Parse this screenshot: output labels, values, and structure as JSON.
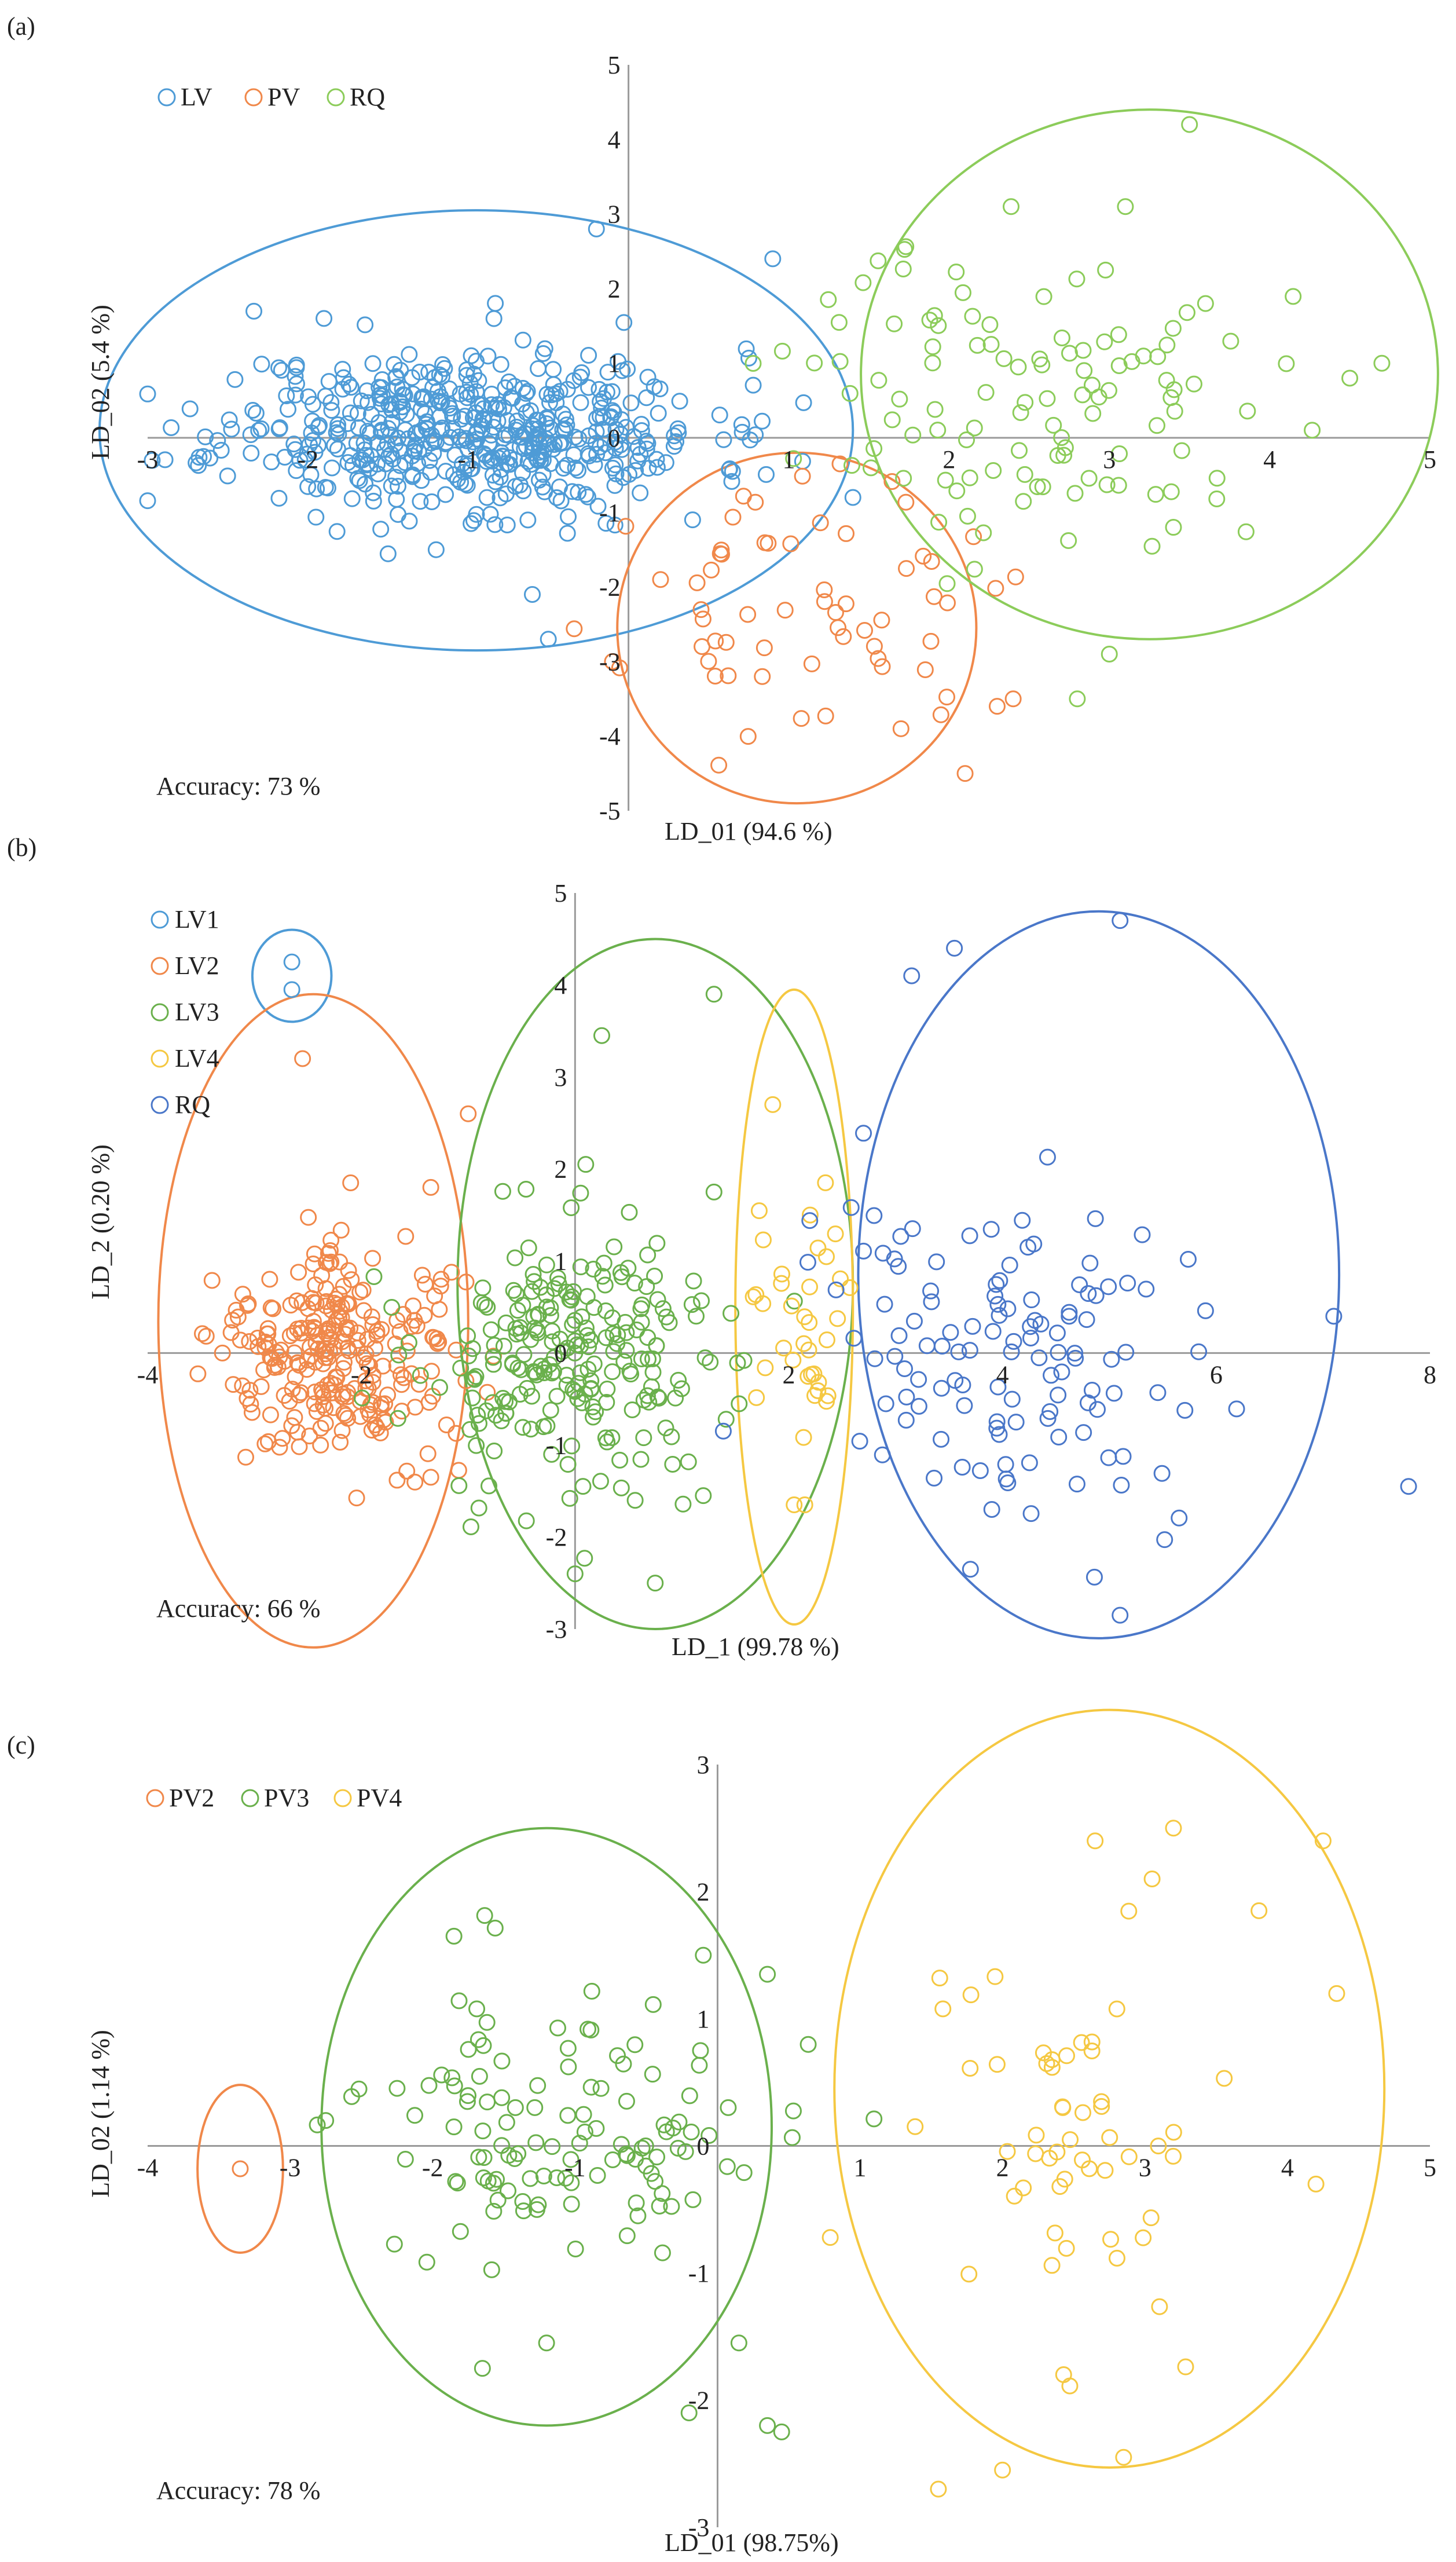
{
  "figure": {
    "panels": [
      "(a)",
      "(b)",
      "(c)"
    ]
  },
  "colors": {
    "LV": "#4e9bd6",
    "PV": "#f0884a",
    "RQ": "#8ccc5a",
    "LV1": "#4e9bd6",
    "LV2": "#f0884a",
    "LV3": "#6ab04c",
    "LV4": "#f5c842",
    "RQ_b": "#4a77c9",
    "PV2": "#f0884a",
    "PV3": "#6ab04c",
    "PV4": "#f5c842",
    "axis": "#9a9a9a"
  },
  "chart_data": [
    {
      "type": "scatter",
      "panel": "(a)",
      "title": "",
      "xlabel": "LD_01 (94.6 %)",
      "ylabel": "LD_02 (5.4 %)",
      "xlim": [
        -3,
        5
      ],
      "ylim": [
        -5,
        5
      ],
      "xticks": [
        -3,
        -2,
        -1,
        0,
        1,
        2,
        3,
        4,
        5
      ],
      "yticks": [
        -5,
        -4,
        -3,
        -2,
        -1,
        0,
        1,
        2,
        3,
        4,
        5
      ],
      "accuracy": "Accuracy: 73 %",
      "legend": [
        "LV",
        "PV",
        "RQ"
      ],
      "series": [
        {
          "name": "LV",
          "cluster": {
            "center": [
              -1.0,
              0.1
            ],
            "spread": [
              0.75,
              0.55
            ],
            "count": 520,
            "seed": 11
          },
          "extra_points": [
            [
              0.9,
              2.4
            ],
            [
              -0.2,
              2.8
            ],
            [
              -1.9,
              1.6
            ],
            [
              1.4,
              -0.8
            ],
            [
              0.4,
              -1.1
            ],
            [
              -0.6,
              -2.1
            ],
            [
              -0.5,
              -2.7
            ],
            [
              -1.2,
              -1.5
            ]
          ]
        },
        {
          "name": "PV",
          "cluster": {
            "center": [
              1.15,
              -2.35
            ],
            "spread": [
              0.55,
              0.8
            ],
            "count": 60,
            "seed": 23
          },
          "extra_points": [
            [
              2.1,
              -4.5
            ],
            [
              2.3,
              -3.6
            ],
            [
              2.4,
              -3.5
            ],
            [
              1.7,
              -3.9
            ],
            [
              0.2,
              -1.9
            ],
            [
              -0.1,
              -3.0
            ]
          ]
        },
        {
          "name": "RQ",
          "cluster": {
            "center": [
              2.55,
              0.55
            ],
            "spread": [
              0.75,
              1.05
            ],
            "count": 110,
            "seed": 37
          },
          "extra_points": [
            [
              3.5,
              4.2
            ],
            [
              3.1,
              3.1
            ],
            [
              4.7,
              1.0
            ],
            [
              4.5,
              0.8
            ],
            [
              3.0,
              -2.9
            ],
            [
              2.8,
              -3.5
            ],
            [
              3.4,
              -1.2
            ],
            [
              3.6,
              1.8
            ]
          ]
        }
      ],
      "ellipses": [
        {
          "name": "LV",
          "center": [
            -0.95,
            0.1
          ],
          "radii": [
            2.35,
            2.95
          ]
        },
        {
          "name": "PV",
          "center": [
            1.05,
            -2.55
          ],
          "radii": [
            1.12,
            2.35
          ]
        },
        {
          "name": "RQ",
          "center": [
            3.25,
            0.85
          ],
          "radii": [
            1.8,
            3.55
          ]
        }
      ]
    },
    {
      "type": "scatter",
      "panel": "(b)",
      "title": "",
      "xlabel": "LD_1 (99.78 %)",
      "ylabel": "LD_2 (0.20 %)",
      "xlim": [
        -4,
        8
      ],
      "ylim": [
        -3,
        5
      ],
      "xticks": [
        -4,
        -2,
        0,
        2,
        4,
        6,
        8
      ],
      "yticks": [
        -3,
        -2,
        -1,
        0,
        1,
        2,
        3,
        4,
        5
      ],
      "accuracy": "Accuracy: 66 %",
      "legend": [
        "LV1",
        "LV2",
        "LV3",
        "LV4",
        "RQ"
      ],
      "series": [
        {
          "name": "LV1",
          "cluster": {
            "center": [
              -2.65,
              4.1
            ],
            "spread": [
              0.02,
              0.2
            ],
            "count": 0,
            "seed": 5
          },
          "extra_points": [
            [
              -2.65,
              4.25
            ],
            [
              -2.65,
              3.95
            ]
          ]
        },
        {
          "name": "LV2",
          "cluster": {
            "center": [
              -2.2,
              0.0
            ],
            "spread": [
              0.55,
              0.55
            ],
            "count": 260,
            "seed": 41
          },
          "extra_points": [
            [
              -2.55,
              3.2
            ],
            [
              -1.0,
              2.6
            ],
            [
              -2.1,
              1.85
            ],
            [
              -1.35,
              1.8
            ],
            [
              -3.3,
              0.0
            ],
            [
              -1.35,
              -1.35
            ]
          ]
        },
        {
          "name": "LV3",
          "cluster": {
            "center": [
              0.0,
              -0.1
            ],
            "spread": [
              0.75,
              0.75
            ],
            "count": 230,
            "seed": 53
          },
          "extra_points": [
            [
              1.3,
              3.9
            ],
            [
              0.25,
              3.45
            ],
            [
              0.1,
              2.05
            ],
            [
              1.3,
              1.75
            ],
            [
              0.0,
              -2.4
            ],
            [
              0.75,
              -2.5
            ],
            [
              1.2,
              -1.55
            ]
          ]
        },
        {
          "name": "LV4",
          "cluster": {
            "center": [
              2.1,
              0.45
            ],
            "spread": [
              0.28,
              0.75
            ],
            "count": 34,
            "seed": 61
          },
          "extra_points": [
            [
              2.2,
              1.5
            ],
            [
              1.85,
              2.7
            ],
            [
              2.15,
              -1.65
            ],
            [
              2.05,
              -1.65
            ]
          ]
        },
        {
          "name": "RQ",
          "cluster": {
            "center": [
              4.2,
              0.0
            ],
            "spread": [
              0.95,
              0.95
            ],
            "count": 120,
            "seed": 73
          },
          "extra_points": [
            [
              5.1,
              4.7
            ],
            [
              3.55,
              4.4
            ],
            [
              3.15,
              4.1
            ],
            [
              7.8,
              -1.45
            ],
            [
              7.1,
              0.4
            ],
            [
              5.1,
              -2.85
            ],
            [
              3.9,
              -1.7
            ],
            [
              3.7,
              -2.35
            ]
          ]
        }
      ],
      "ellipses": [
        {
          "name": "LV1",
          "center": [
            -2.65,
            4.1
          ],
          "radii": [
            0.37,
            0.5
          ]
        },
        {
          "name": "LV2",
          "center": [
            -2.45,
            0.35
          ],
          "radii": [
            1.45,
            3.55
          ]
        },
        {
          "name": "LV3",
          "center": [
            0.75,
            0.75
          ],
          "radii": [
            1.85,
            3.75
          ]
        },
        {
          "name": "LV4",
          "center": [
            2.05,
            0.5
          ],
          "radii": [
            0.55,
            3.45
          ]
        },
        {
          "name": "RQ",
          "center": [
            4.9,
            0.85
          ],
          "radii": [
            2.25,
            3.95
          ]
        }
      ]
    },
    {
      "type": "scatter",
      "panel": "(c)",
      "title": "",
      "xlabel": "LD_01 (98.75%)",
      "ylabel": "LD_02 (1.14 %)",
      "xlim": [
        -4,
        5
      ],
      "ylim": [
        -3,
        3
      ],
      "xticks": [
        -4,
        -3,
        -2,
        -1,
        0,
        1,
        2,
        3,
        4,
        5
      ],
      "yticks": [
        -3,
        -2,
        -1,
        0,
        1,
        2,
        3
      ],
      "accuracy": "Accuracy: 78 %",
      "legend": [
        "PV2",
        "PV3",
        "PV4"
      ],
      "series": [
        {
          "name": "PV2",
          "cluster": {
            "center": [
              -3.35,
              -0.18
            ],
            "spread": [
              0.01,
              0.01
            ],
            "count": 0,
            "seed": 3
          },
          "extra_points": [
            [
              -3.35,
              -0.18
            ]
          ]
        },
        {
          "name": "PV3",
          "cluster": {
            "center": [
              -0.95,
              0.15
            ],
            "spread": [
              0.75,
              0.55
            ],
            "count": 120,
            "seed": 89
          },
          "extra_points": [
            [
              -1.85,
              1.65
            ],
            [
              -0.1,
              1.5
            ],
            [
              0.35,
              1.35
            ],
            [
              0.35,
              -2.2
            ],
            [
              0.45,
              -2.25
            ],
            [
              -0.2,
              -2.1
            ],
            [
              -2.75,
              0.2
            ],
            [
              -1.65,
              -1.75
            ],
            [
              -1.2,
              -1.55
            ],
            [
              0.15,
              -1.55
            ]
          ]
        },
        {
          "name": "PV4",
          "cluster": {
            "center": [
              2.2,
              0.0
            ],
            "spread": [
              0.7,
              0.9
            ],
            "count": 55,
            "seed": 97
          },
          "extra_points": [
            [
              4.25,
              2.4
            ],
            [
              3.2,
              2.5
            ],
            [
              3.05,
              2.1
            ],
            [
              3.8,
              1.85
            ],
            [
              2.65,
              2.4
            ],
            [
              2.0,
              -2.55
            ],
            [
              1.55,
              -2.7
            ],
            [
              2.85,
              -2.45
            ],
            [
              4.2,
              -0.3
            ]
          ]
        }
      ],
      "ellipses": [
        {
          "name": "PV2",
          "center": [
            -3.35,
            -0.18
          ],
          "radii": [
            0.3,
            0.66
          ]
        },
        {
          "name": "PV3",
          "center": [
            -1.2,
            0.15
          ],
          "radii": [
            1.58,
            2.35
          ]
        },
        {
          "name": "PV4",
          "center": [
            2.75,
            0.45
          ],
          "radii": [
            1.93,
            2.98
          ]
        }
      ]
    }
  ]
}
